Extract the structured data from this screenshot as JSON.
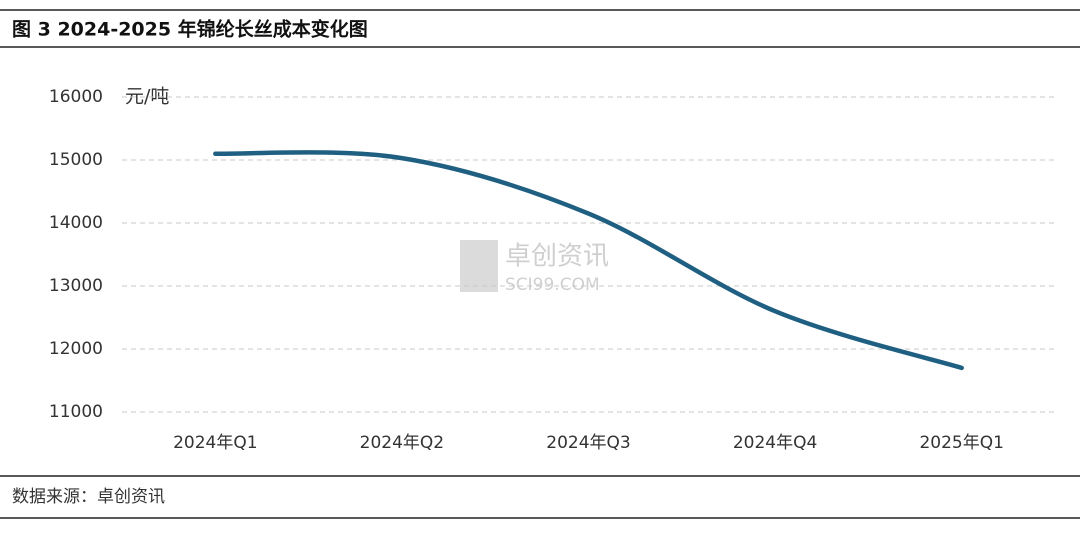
{
  "chart_data": {
    "type": "line",
    "title": "图 3 2024-2025 年锦纶长丝成本变化图",
    "y_unit": "元/吨",
    "categories": [
      "2024年Q1",
      "2024年Q2",
      "2024年Q3",
      "2024年Q4",
      "2025年Q1"
    ],
    "series": [
      {
        "name": "锦纶长丝成本",
        "color": "#1f5f82",
        "values": [
          15100,
          15030,
          14150,
          12600,
          11700
        ]
      }
    ],
    "ylim": [
      11000,
      16000
    ],
    "yticks": [
      11000,
      12000,
      13000,
      14000,
      15000,
      16000
    ],
    "grid": true,
    "smooth": true,
    "watermark": {
      "text": "卓创资讯",
      "sub": "SCI99.COM"
    },
    "source": "数据来源：卓创资讯"
  }
}
